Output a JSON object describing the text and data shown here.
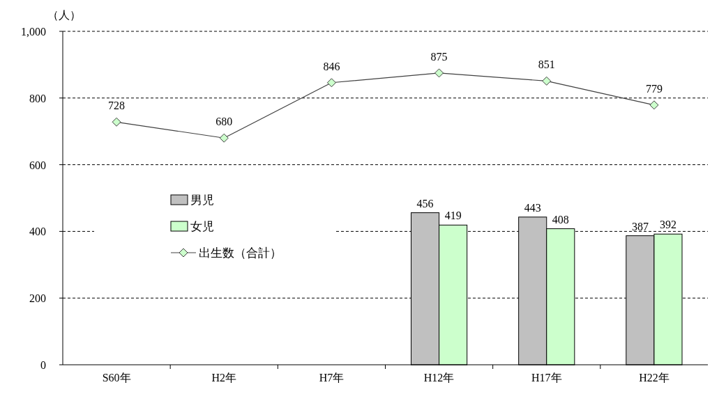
{
  "chart_data": {
    "type": "bar",
    "ylabel": "（人）",
    "categories": [
      "S60年",
      "H2年",
      "H7年",
      "H12年",
      "H17年",
      "H22年"
    ],
    "series": [
      {
        "name": "男児",
        "color": "#c0c0c0",
        "values": [
          null,
          null,
          null,
          456,
          443,
          387
        ]
      },
      {
        "name": "女児",
        "color": "#ccffcc",
        "values": [
          null,
          null,
          null,
          419,
          408,
          392
        ]
      },
      {
        "name": "出生数（合計）",
        "type": "line",
        "color": "#404040",
        "values": [
          728,
          680,
          846,
          875,
          851,
          779
        ]
      }
    ],
    "ylim": [
      0,
      1000
    ],
    "yticks": [
      0,
      200,
      400,
      600,
      800,
      {
        "value": 1000,
        "label": "1,000"
      }
    ],
    "grid": "y",
    "legend": "left",
    "marker": "diamond",
    "data_labels": true
  }
}
